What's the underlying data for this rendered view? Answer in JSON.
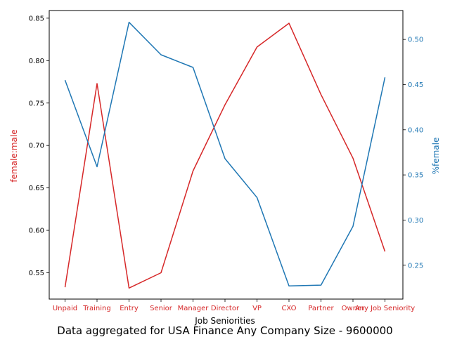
{
  "chart_data": {
    "type": "line",
    "xlabel": "Job Seniorities",
    "caption": "Data aggregated for USA Finance Any Company Size - 9600000",
    "categories": [
      "Unpaid",
      "Training",
      "Entry",
      "Senior",
      "Manager",
      "Director",
      "VP",
      "CXO",
      "Partner",
      "Owner",
      "Any Job Seniority"
    ],
    "series": [
      {
        "axis": "left",
        "ylabel": "female:male",
        "color": "#d62728",
        "values": [
          0.533,
          0.773,
          0.532,
          0.55,
          0.67,
          0.748,
          0.816,
          0.844,
          0.76,
          0.685,
          0.575
        ]
      },
      {
        "axis": "right",
        "ylabel": "%female",
        "color": "#1f77b4",
        "values": [
          0.455,
          0.359,
          0.519,
          0.483,
          0.469,
          0.368,
          0.325,
          0.227,
          0.228,
          0.293,
          0.458
        ]
      }
    ],
    "left_axis": {
      "ylim": [
        0.519,
        0.859
      ],
      "ticks": [
        "0.55",
        "0.60",
        "0.65",
        "0.70",
        "0.75",
        "0.80",
        "0.85"
      ],
      "tick_color": "#000000"
    },
    "right_axis": {
      "ylim": [
        0.2125,
        0.532
      ],
      "ticks": [
        "0.25",
        "0.30",
        "0.35",
        "0.40",
        "0.45",
        "0.50"
      ],
      "tick_color": "#1f77b4"
    },
    "xtick_color": "#d62728",
    "grid": false,
    "legend": "none"
  }
}
